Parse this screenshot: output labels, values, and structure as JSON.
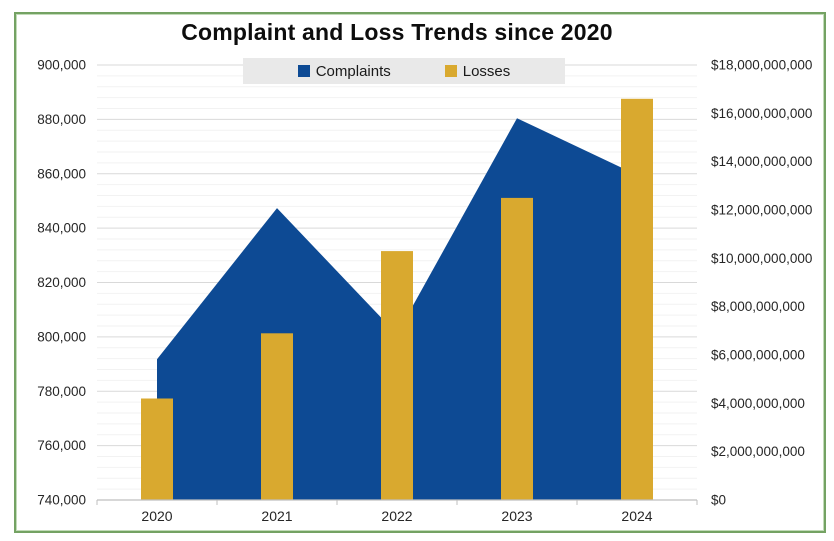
{
  "chart_data": {
    "type": "combo",
    "title": "Complaint and Loss Trends since 2020",
    "categories": [
      "2020",
      "2021",
      "2022",
      "2023",
      "2024"
    ],
    "series": [
      {
        "name": "Complaints",
        "type": "area",
        "axis": "left",
        "color": "#0d4a94",
        "values": [
          791790,
          847376,
          800944,
          880418,
          859532
        ]
      },
      {
        "name": "Losses",
        "type": "bar",
        "axis": "right",
        "color": "#d9a92f",
        "values": [
          4200000000,
          6900000000,
          10300000000,
          12500000000,
          16600000000
        ]
      }
    ],
    "left_axis": {
      "min": 740000,
      "max": 900000,
      "major_step": 20000,
      "minor_step": 4000,
      "tick_labels": [
        "740,000",
        "760,000",
        "780,000",
        "800,000",
        "820,000",
        "840,000",
        "860,000",
        "880,000",
        "900,000"
      ]
    },
    "right_axis": {
      "min": 0,
      "max": 18000000000,
      "major_step": 2000000000,
      "tick_labels": [
        "$0",
        "$2,000,000,000",
        "$4,000,000,000",
        "$6,000,000,000",
        "$8,000,000,000",
        "$10,000,000,000",
        "$12,000,000,000",
        "$14,000,000,000",
        "$16,000,000,000",
        "$18,000,000,000"
      ]
    },
    "legend_position": "top",
    "grid": "major-and-minor-horizontal",
    "colors": {
      "complaints_blue": "#0d4a94",
      "losses_gold": "#d9a92f",
      "frame_green": "#74a263",
      "legend_background": "#e9e9e9",
      "major_gridline": "#d9d9d9",
      "minor_gridline": "#f2f2f2",
      "axis_line": "#bfbfbf",
      "label_text": "#262626"
    }
  }
}
